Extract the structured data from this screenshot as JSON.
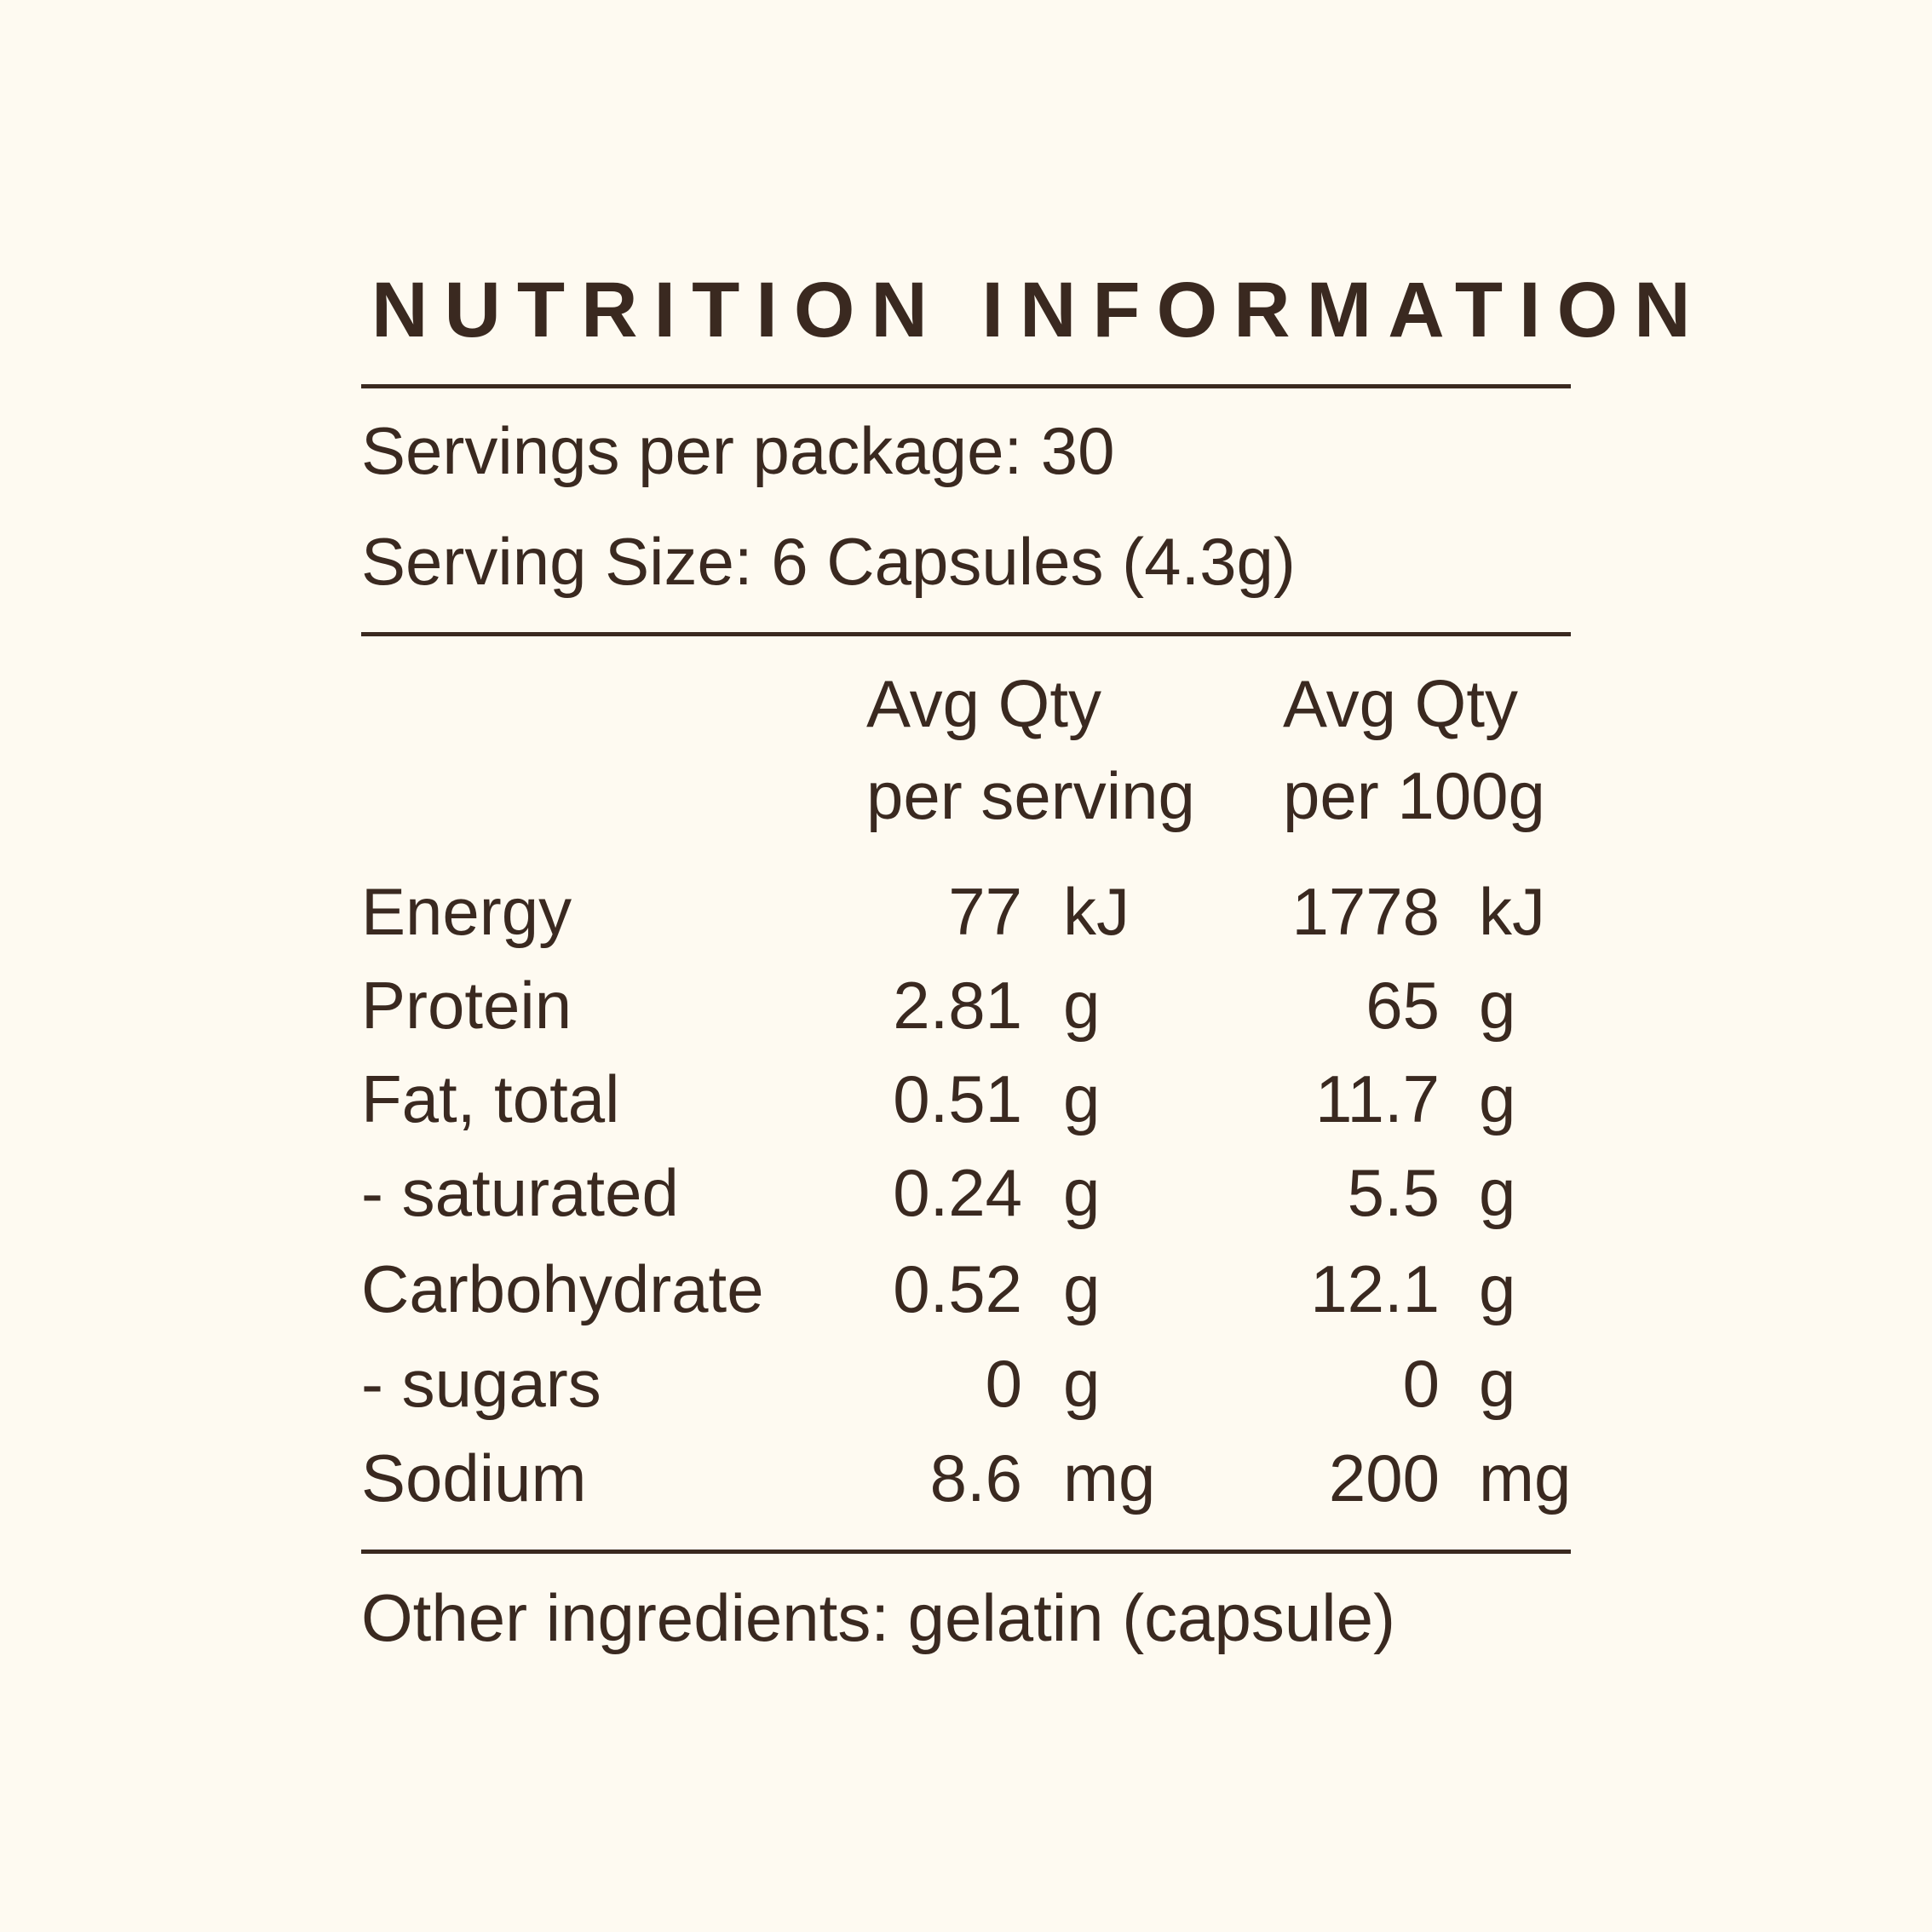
{
  "title": "NUTRITION INFORMATION",
  "servings_per_package": "Servings per package: 30",
  "serving_size": "Serving Size: 6 Capsules (4.3g)",
  "columns": [
    {
      "line1": "Avg Qty",
      "line2": "per serving"
    },
    {
      "line1": "Avg Qty",
      "line2": "per 100g"
    }
  ],
  "rows": [
    {
      "name": "Energy",
      "per_serving": "77",
      "per_serving_unit": "kJ",
      "per_100g": "1778",
      "per_100g_unit": "kJ"
    },
    {
      "name": "Protein",
      "per_serving": "2.81",
      "per_serving_unit": "g",
      "per_100g": "65",
      "per_100g_unit": "g"
    },
    {
      "name": "Fat, total",
      "per_serving": "0.51",
      "per_serving_unit": "g",
      "per_100g": "11.7",
      "per_100g_unit": "g"
    },
    {
      "name": "- saturated",
      "per_serving": "0.24",
      "per_serving_unit": "g",
      "per_100g": "5.5",
      "per_100g_unit": "g"
    },
    {
      "name": "Carbohydrate",
      "per_serving": "0.52",
      "per_serving_unit": "g",
      "per_100g": "12.1",
      "per_100g_unit": "g"
    },
    {
      "name": "- sugars",
      "per_serving": "0",
      "per_serving_unit": "g",
      "per_100g": "0",
      "per_100g_unit": "g"
    },
    {
      "name": "Sodium",
      "per_serving": "8.6",
      "per_serving_unit": "mg",
      "per_100g": "200",
      "per_100g_unit": "mg"
    }
  ],
  "other_ingredients": "Other ingredients: gelatin (capsule)",
  "colors": {
    "background": "#fefaf1",
    "text": "#3a2920"
  }
}
